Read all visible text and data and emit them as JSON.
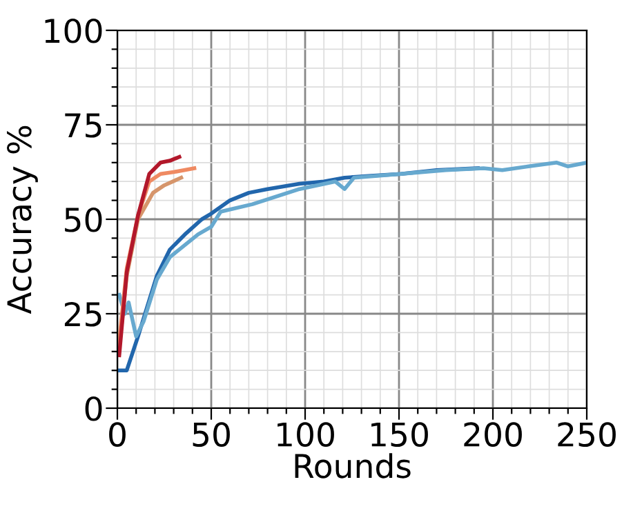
{
  "chart_data": {
    "type": "line",
    "xlabel": "Rounds",
    "ylabel": "Accuracy %",
    "xlim": [
      0,
      250
    ],
    "ylim": [
      0,
      100
    ],
    "xticks": [
      0,
      {
        "value": 10,
        "label": null
      },
      {
        "value": 20,
        "label": null
      },
      {
        "value": 30,
        "label": null
      },
      {
        "value": 40,
        "label": null
      },
      50,
      {
        "value": 60,
        "label": null
      },
      {
        "value": 70,
        "label": null
      },
      {
        "value": 80,
        "label": null
      },
      {
        "value": 90,
        "label": null
      },
      100,
      {
        "value": 110,
        "label": null
      },
      {
        "value": 120,
        "label": null
      },
      {
        "value": 130,
        "label": null
      },
      {
        "value": 140,
        "label": null
      },
      150,
      {
        "value": 160,
        "label": null
      },
      {
        "value": 170,
        "label": null
      },
      {
        "value": 180,
        "label": null
      },
      {
        "value": 190,
        "label": null
      },
      200,
      {
        "value": 210,
        "label": null
      },
      {
        "value": 220,
        "label": null
      },
      {
        "value": 230,
        "label": null
      },
      {
        "value": 240,
        "label": null
      },
      250
    ],
    "yticks": [
      0,
      {
        "value": 5,
        "label": null
      },
      {
        "value": 10,
        "label": null
      },
      {
        "value": 15,
        "label": null
      },
      {
        "value": 20,
        "label": null
      },
      25,
      {
        "value": 30,
        "label": null
      },
      {
        "value": 35,
        "label": null
      },
      {
        "value": 40,
        "label": null
      },
      {
        "value": 45,
        "label": null
      },
      50,
      {
        "value": 55,
        "label": null
      },
      {
        "value": 60,
        "label": null
      },
      {
        "value": 65,
        "label": null
      },
      {
        "value": 70,
        "label": null
      },
      75,
      {
        "value": 80,
        "label": null
      },
      {
        "value": 85,
        "label": null
      },
      {
        "value": 90,
        "label": null
      },
      {
        "value": 95,
        "label": null
      },
      100
    ],
    "grid": true,
    "line_style": "solid",
    "marker": "none",
    "series": [
      {
        "color": "#2166ac",
        "x": [
          1,
          5,
          11,
          21,
          28,
          36,
          45,
          50,
          60,
          70,
          80,
          97,
          110,
          121,
          135,
          151,
          170,
          192
        ],
        "values": [
          10,
          10,
          19,
          35,
          42,
          46,
          50,
          51.5,
          55,
          57,
          58,
          59.4,
          60,
          61,
          61.5,
          62,
          63,
          63.5
        ]
      },
      {
        "color": "#67a9cf",
        "x": [
          1,
          4,
          6,
          10,
          14,
          21,
          28,
          43,
          50,
          55,
          72,
          97,
          116,
          121,
          126,
          151,
          175,
          195,
          205,
          219,
          234,
          240,
          250
        ],
        "values": [
          30,
          25,
          28,
          19,
          23,
          34,
          40,
          46,
          48,
          52,
          54,
          58,
          60,
          58,
          61,
          62,
          63,
          63.5,
          63,
          64,
          65,
          64,
          65
        ]
      },
      {
        "color": "#d6956b",
        "x": [
          1,
          5,
          11,
          19,
          25,
          34
        ],
        "values": [
          16,
          35,
          50,
          57,
          59,
          61
        ]
      },
      {
        "color": "#ef8a62",
        "x": [
          1,
          5,
          11,
          17,
          23,
          30,
          41
        ],
        "values": [
          18,
          37,
          51,
          60,
          62,
          62.5,
          63.5
        ]
      },
      {
        "color": "#b2182b",
        "x": [
          1,
          5,
          11,
          17,
          23,
          28,
          33
        ],
        "values": [
          14,
          36,
          51,
          62,
          65,
          65.5,
          66.5
        ]
      }
    ]
  }
}
